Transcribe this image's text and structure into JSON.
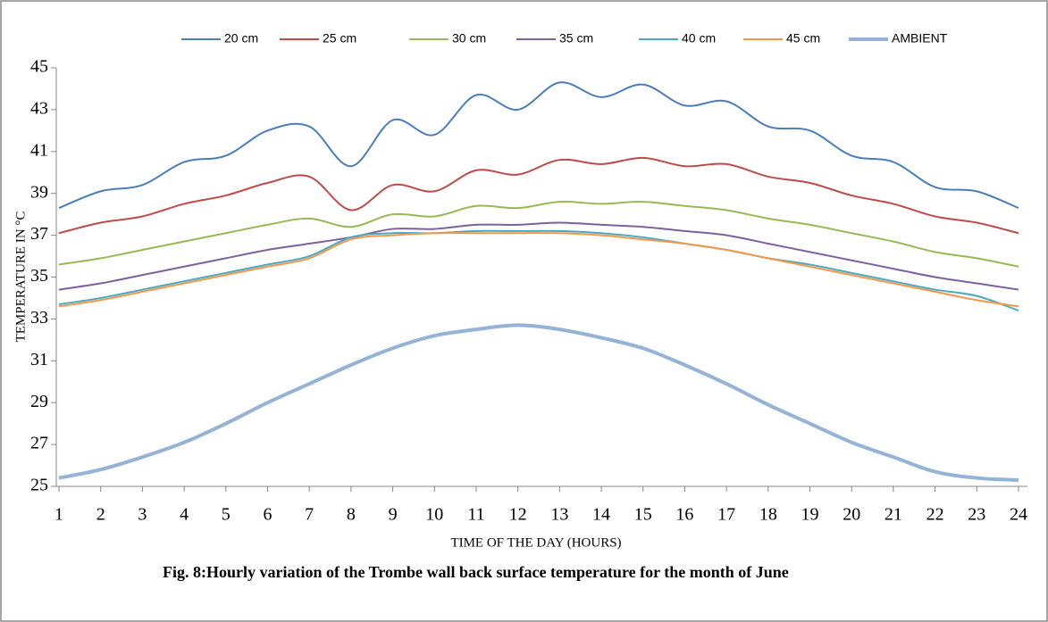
{
  "chart_data": {
    "type": "line",
    "x_label": "TIME OF THE DAY (HOURS)",
    "y_label": "TEMPERATURE IN °C",
    "caption": "Fig. 8:Hourly variation  of the  Trombe wall back surface temperature for the month of  June",
    "x": [
      1,
      2,
      3,
      4,
      5,
      6,
      7,
      8,
      9,
      10,
      11,
      12,
      13,
      14,
      15,
      16,
      17,
      18,
      19,
      20,
      21,
      22,
      23,
      24
    ],
    "xlim": [
      1,
      24
    ],
    "xticks": [
      1,
      2,
      3,
      4,
      5,
      6,
      7,
      8,
      9,
      10,
      11,
      12,
      13,
      14,
      15,
      16,
      17,
      18,
      19,
      20,
      21,
      22,
      23,
      24
    ],
    "ylim": [
      25,
      45
    ],
    "yticks": [
      25,
      27,
      29,
      31,
      33,
      35,
      37,
      39,
      41,
      43,
      45
    ],
    "grid": false,
    "legend": "top",
    "series": [
      {
        "name": "20 cm",
        "color": "#4a7ebb",
        "values": [
          38.3,
          39.1,
          39.4,
          40.5,
          40.8,
          42.0,
          42.2,
          40.3,
          42.5,
          41.8,
          43.7,
          43.0,
          44.3,
          43.6,
          44.2,
          43.2,
          43.4,
          42.2,
          42.0,
          40.8,
          40.5,
          39.3,
          39.1,
          38.3
        ]
      },
      {
        "name": "25 cm",
        "color": "#be4b48",
        "values": [
          37.1,
          37.6,
          37.9,
          38.5,
          38.9,
          39.5,
          39.8,
          38.2,
          39.4,
          39.1,
          40.1,
          39.9,
          40.6,
          40.4,
          40.7,
          40.3,
          40.4,
          39.8,
          39.5,
          38.9,
          38.5,
          37.9,
          37.6,
          37.1
        ]
      },
      {
        "name": "30 cm",
        "color": "#98b954",
        "values": [
          35.6,
          35.9,
          36.3,
          36.7,
          37.1,
          37.5,
          37.8,
          37.4,
          38.0,
          37.9,
          38.4,
          38.3,
          38.6,
          38.5,
          38.6,
          38.4,
          38.2,
          37.8,
          37.5,
          37.1,
          36.7,
          36.2,
          35.9,
          35.5
        ]
      },
      {
        "name": "35 cm",
        "color": "#7d60a0",
        "values": [
          34.4,
          34.7,
          35.1,
          35.5,
          35.9,
          36.3,
          36.6,
          36.9,
          37.3,
          37.3,
          37.5,
          37.5,
          37.6,
          37.5,
          37.4,
          37.2,
          37.0,
          36.6,
          36.2,
          35.8,
          35.4,
          35.0,
          34.7,
          34.4
        ]
      },
      {
        "name": "40 cm",
        "color": "#46aac5",
        "values": [
          33.7,
          34.0,
          34.4,
          34.8,
          35.2,
          35.6,
          36.0,
          36.9,
          37.1,
          37.1,
          37.2,
          37.2,
          37.2,
          37.1,
          36.9,
          36.6,
          36.3,
          35.9,
          35.6,
          35.2,
          34.8,
          34.4,
          34.1,
          33.4
        ]
      },
      {
        "name": "45 cm",
        "color": "#f79646",
        "values": [
          33.6,
          33.9,
          34.3,
          34.7,
          35.1,
          35.5,
          35.9,
          36.8,
          37.0,
          37.1,
          37.1,
          37.1,
          37.1,
          37.0,
          36.8,
          36.6,
          36.3,
          35.9,
          35.5,
          35.1,
          34.7,
          34.3,
          33.9,
          33.6
        ]
      },
      {
        "name": "AMBIENT",
        "color": "#95b3d7",
        "width": 4,
        "values": [
          25.4,
          25.8,
          26.4,
          27.1,
          28.0,
          29.0,
          29.9,
          30.8,
          31.6,
          32.2,
          32.5,
          32.7,
          32.5,
          32.1,
          31.6,
          30.8,
          29.9,
          28.9,
          28.0,
          27.1,
          26.4,
          25.7,
          25.4,
          25.3
        ]
      }
    ]
  }
}
